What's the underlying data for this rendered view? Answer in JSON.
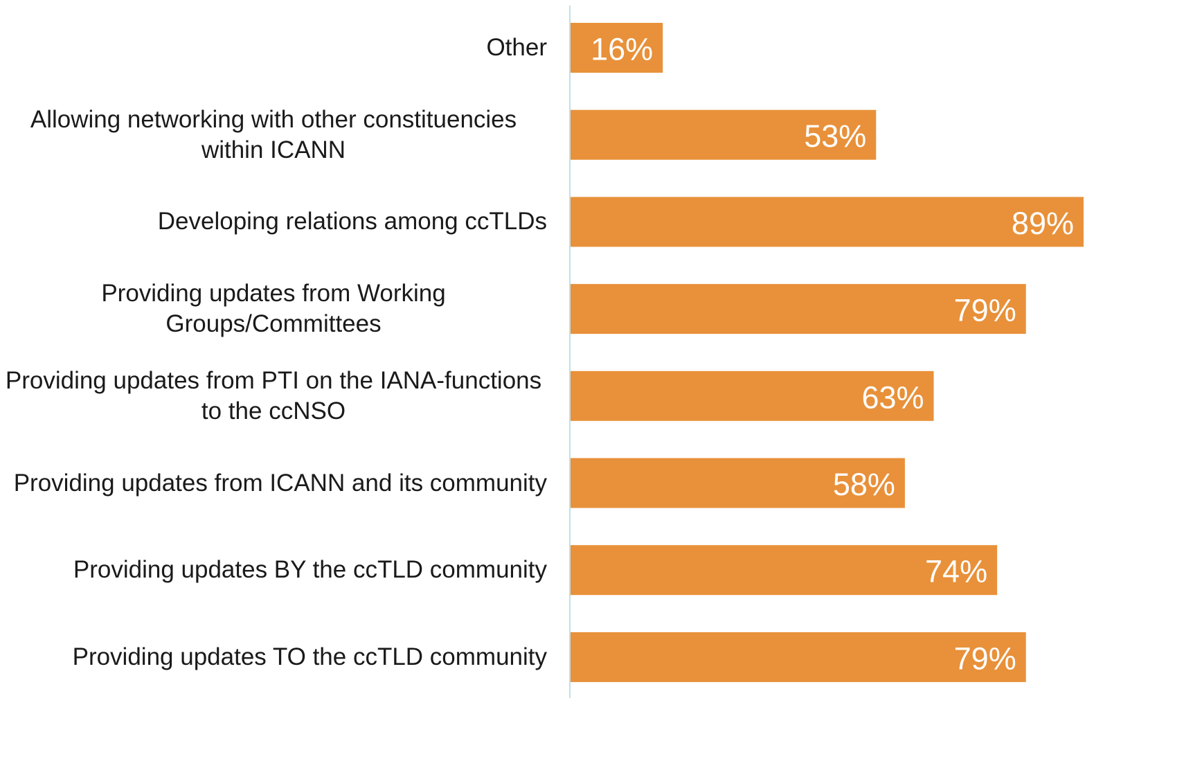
{
  "chart_data": {
    "type": "barh",
    "categories": [
      "Other",
      "Allowing networking with other constituencies within ICANN",
      "Developing relations among ccTLDs",
      "Providing updates from Working Groups/Committees",
      "Providing updates from PTI on the IANA-functions to the ccNSO",
      "Providing updates from ICANN and its community",
      "Providing updates BY the ccTLD community",
      "Providing updates TO the ccTLD community"
    ],
    "values": [
      16,
      53,
      89,
      79,
      63,
      58,
      74,
      79
    ],
    "value_labels": [
      "16%",
      "53%",
      "89%",
      "79%",
      "63%",
      "58%",
      "74%",
      "79%"
    ],
    "color": "#e8913a"
  }
}
